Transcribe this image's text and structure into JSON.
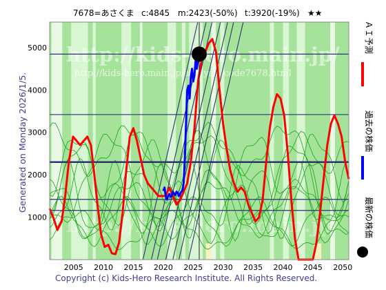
{
  "header": {
    "code_name": "7678=あさくま",
    "current": "c:4845",
    "model": "m:2423(-50%)",
    "target": "t:3920(-19%)",
    "stars": "★★"
  },
  "generated_label": "Generated on Monday 2026/1/5.",
  "watermark_main": "http://kids-hero.main.jp/",
  "watermark_sub": "http://kids-hero.main.jp/analysis/code7678.html",
  "copyright": "Copyright (c) Kids-Hero Research Institute. All Rights Reserved.",
  "legend": {
    "ai_forecast": "ＡＩ予測",
    "past_price": "過去の株価",
    "latest_price": "最新の株価"
  },
  "colors": {
    "bg_green": "#a6e39a",
    "band_light": "#d9f6d2",
    "band_pale": "#e9f9e5",
    "yellow_band": "#f6f2c2",
    "ai_line": "#ff0000",
    "past_line": "#0000ff",
    "trend_line": "#2b3370",
    "thin_green": "#1aa31a",
    "label_blue": "#3e3e8e"
  },
  "chart_data": {
    "type": "line",
    "x_ticks": [
      2005,
      2010,
      2015,
      2020,
      2025,
      2030,
      2035,
      2040,
      2045,
      2050
    ],
    "y_ticks": [
      1000,
      2000,
      3000,
      4000,
      5000
    ],
    "xlim": [
      2001,
      2051
    ],
    "ylim": [
      0,
      5600
    ],
    "horizontal_levels": [
      4845,
      3420,
      2300,
      1420,
      1160
    ],
    "latest_point": {
      "x": 2026.0,
      "y": 4845
    },
    "series": [
      {
        "key": "ai",
        "x": [
          2001,
          2001.6,
          2002.3,
          2003,
          2003.6,
          2004.2,
          2004.9,
          2005.5,
          2006.1,
          2006.7,
          2007.3,
          2007.9,
          2008.4,
          2009,
          2009.6,
          2010.2,
          2010.8,
          2011.4,
          2012,
          2012.6,
          2013.2,
          2013.8,
          2014.4,
          2015,
          2015.6,
          2016.2,
          2016.8,
          2017.4,
          2018,
          2018.6,
          2019.2,
          2019.8,
          2020.4,
          2021,
          2021.6,
          2022.2,
          2022.8,
          2023.4,
          2024,
          2024.6,
          2025.2,
          2025.8,
          2026.4,
          2027,
          2027.6,
          2028.2,
          2028.8,
          2029.4,
          2030,
          2030.6,
          2031.2,
          2031.8,
          2032.4,
          2033,
          2033.6,
          2034.2,
          2034.8,
          2035.4,
          2036,
          2036.6,
          2037.2,
          2037.8,
          2038.4,
          2039,
          2039.6,
          2040.2,
          2040.8,
          2041.4,
          2042,
          2042.6,
          2043.2,
          2043.8,
          2044.4,
          2045,
          2045.6,
          2046.2,
          2046.8,
          2047.4,
          2048,
          2048.6,
          2049.2,
          2049.8,
          2050.4,
          2051
        ],
        "y": [
          1200,
          1000,
          700,
          900,
          1500,
          2300,
          2900,
          2800,
          2700,
          2800,
          2900,
          2700,
          2100,
          1300,
          600,
          300,
          350,
          150,
          130,
          400,
          1100,
          2100,
          2900,
          3100,
          2800,
          2400,
          2000,
          1800,
          1700,
          1600,
          1500,
          1500,
          1500,
          1700,
          1500,
          1300,
          1400,
          1600,
          1800,
          2300,
          3100,
          4200,
          4700,
          4900,
          5100,
          5200,
          4900,
          4000,
          3200,
          2600,
          2100,
          1800,
          1600,
          1700,
          1600,
          1300,
          1100,
          900,
          1000,
          1400,
          2300,
          3100,
          3600,
          3900,
          3800,
          3400,
          2500,
          1400,
          500,
          0,
          0,
          0,
          0,
          0,
          400,
          1100,
          1900,
          2700,
          3200,
          3400,
          3200,
          2900,
          2300,
          1900
        ]
      },
      {
        "key": "past",
        "x": [
          2020,
          2020.2,
          2020.4,
          2020.6,
          2020.8,
          2021,
          2021.2,
          2021.4,
          2021.6,
          2021.8,
          2022,
          2022.2,
          2022.4,
          2022.6,
          2022.8,
          2023,
          2023.2,
          2023.4,
          2023.6,
          2023.8,
          2024,
          2024.2,
          2024.4,
          2024.6,
          2024.8,
          2025,
          2025.2,
          2025.4,
          2025.6,
          2025.8,
          2026
        ],
        "y": [
          1620,
          1700,
          1500,
          1420,
          1500,
          1550,
          1480,
          1500,
          1600,
          1560,
          1520,
          1600,
          1580,
          1500,
          1550,
          1600,
          1620,
          1800,
          2400,
          3200,
          4000,
          4100,
          3800,
          4300,
          4500,
          4200,
          4350,
          4700,
          4500,
          4700,
          4845
        ]
      }
    ]
  }
}
